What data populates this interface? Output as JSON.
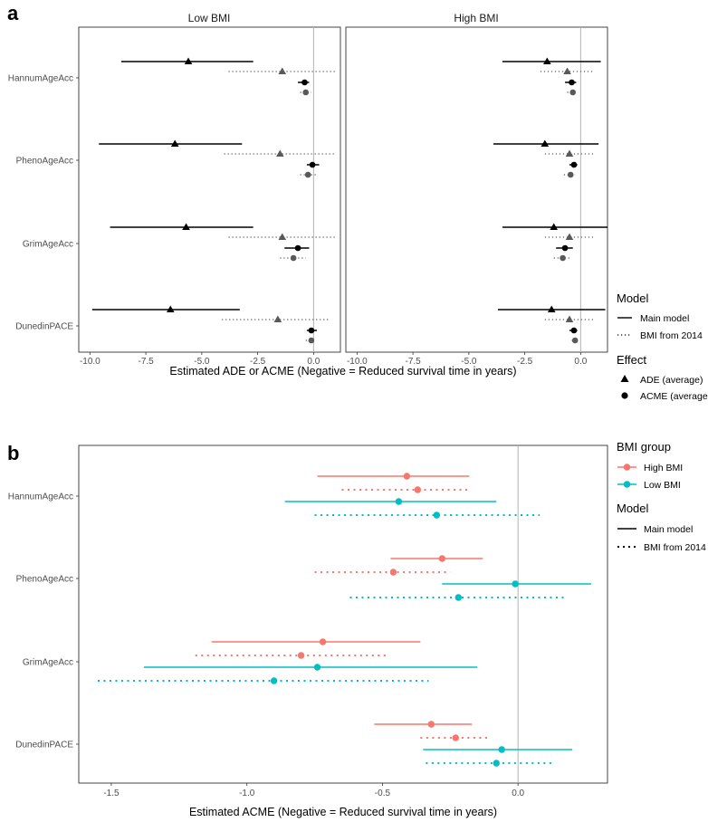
{
  "panel_a": {
    "label": "a",
    "facets": [
      "Low BMI",
      "High BMI"
    ],
    "xlabel": "Estimated ADE or ACME (Negative = Reduced survival time in years)",
    "legend": {
      "model_title": "Model",
      "model_items": [
        "Main model",
        "BMI from 2014"
      ],
      "effect_title": "Effect",
      "effect_items": [
        "ADE (average)",
        "ACME (average)"
      ]
    }
  },
  "panel_b": {
    "label": "b",
    "xlabel": "Estimated ACME (Negative = Reduced survival time in years)",
    "legend": {
      "group_title": "BMI group",
      "group_items": [
        "High BMI",
        "Low BMI"
      ],
      "group_colors": [
        "#F8766D",
        "#00BFC4"
      ],
      "model_title": "Model",
      "model_items": [
        "Main model",
        "BMI from 2014"
      ]
    }
  },
  "chart_data": [
    {
      "type": "scatter",
      "subtype": "forest",
      "title": "a",
      "facets": [
        "Low BMI",
        "High BMI"
      ],
      "categories": [
        "HannumAgeAcc",
        "PhenoAgeAcc",
        "GrimAgeAcc",
        "DunedinPACE"
      ],
      "xlim": [
        -10.5,
        1.2
      ],
      "xticks": [
        -10.0,
        -7.5,
        -5.0,
        -2.5,
        0.0
      ],
      "xtick_labels": [
        "-10.0",
        "-7.5",
        "-5.0",
        "-2.5",
        "0.0"
      ],
      "xlabel": "Estimated ADE or ACME (Negative = Reduced survival time in years)",
      "series": [
        {
          "facet": "Low BMI",
          "category": "HannumAgeAcc",
          "effect": "ADE",
          "model": "Main model",
          "est": -5.6,
          "lo": -8.6,
          "hi": -2.7
        },
        {
          "facet": "Low BMI",
          "category": "HannumAgeAcc",
          "effect": "ADE",
          "model": "BMI from 2014",
          "est": -1.4,
          "lo": -3.8,
          "hi": 1.0
        },
        {
          "facet": "Low BMI",
          "category": "HannumAgeAcc",
          "effect": "ACME",
          "model": "Main model",
          "est": -0.4,
          "lo": -0.7,
          "hi": -0.2
        },
        {
          "facet": "Low BMI",
          "category": "HannumAgeAcc",
          "effect": "ACME",
          "model": "BMI from 2014",
          "est": -0.35,
          "lo": -0.6,
          "hi": -0.1
        },
        {
          "facet": "Low BMI",
          "category": "PhenoAgeAcc",
          "effect": "ADE",
          "model": "Main model",
          "est": -6.2,
          "lo": -9.6,
          "hi": -3.2
        },
        {
          "facet": "Low BMI",
          "category": "PhenoAgeAcc",
          "effect": "ADE",
          "model": "BMI from 2014",
          "est": -1.5,
          "lo": -4.0,
          "hi": 1.0
        },
        {
          "facet": "Low BMI",
          "category": "PhenoAgeAcc",
          "effect": "ACME",
          "model": "Main model",
          "est": -0.05,
          "lo": -0.3,
          "hi": 0.25
        },
        {
          "facet": "Low BMI",
          "category": "PhenoAgeAcc",
          "effect": "ACME",
          "model": "BMI from 2014",
          "est": -0.25,
          "lo": -0.6,
          "hi": 0.15
        },
        {
          "facet": "Low BMI",
          "category": "GrimAgeAcc",
          "effect": "ADE",
          "model": "Main model",
          "est": -5.7,
          "lo": -9.1,
          "hi": -2.7
        },
        {
          "facet": "Low BMI",
          "category": "GrimAgeAcc",
          "effect": "ADE",
          "model": "BMI from 2014",
          "est": -1.4,
          "lo": -3.8,
          "hi": 1.0
        },
        {
          "facet": "Low BMI",
          "category": "GrimAgeAcc",
          "effect": "ACME",
          "model": "Main model",
          "est": -0.7,
          "lo": -1.3,
          "hi": -0.2
        },
        {
          "facet": "Low BMI",
          "category": "GrimAgeAcc",
          "effect": "ACME",
          "model": "BMI from 2014",
          "est": -0.9,
          "lo": -1.5,
          "hi": -0.35
        },
        {
          "facet": "Low BMI",
          "category": "DunedinPACE",
          "effect": "ADE",
          "model": "Main model",
          "est": -6.4,
          "lo": -9.9,
          "hi": -3.3
        },
        {
          "facet": "Low BMI",
          "category": "DunedinPACE",
          "effect": "ADE",
          "model": "BMI from 2014",
          "est": -1.6,
          "lo": -4.1,
          "hi": 0.7
        },
        {
          "facet": "Low BMI",
          "category": "DunedinPACE",
          "effect": "ACME",
          "model": "Main model",
          "est": -0.1,
          "lo": -0.3,
          "hi": 0.15
        },
        {
          "facet": "Low BMI",
          "category": "DunedinPACE",
          "effect": "ACME",
          "model": "BMI from 2014",
          "est": -0.1,
          "lo": -0.35,
          "hi": 0.1
        },
        {
          "facet": "High BMI",
          "category": "HannumAgeAcc",
          "effect": "ADE",
          "model": "Main model",
          "est": -1.5,
          "lo": -3.5,
          "hi": 0.9
        },
        {
          "facet": "High BMI",
          "category": "HannumAgeAcc",
          "effect": "ADE",
          "model": "BMI from 2014",
          "est": -0.6,
          "lo": -1.8,
          "hi": 0.6
        },
        {
          "facet": "High BMI",
          "category": "HannumAgeAcc",
          "effect": "ACME",
          "model": "Main model",
          "est": -0.4,
          "lo": -0.7,
          "hi": -0.2
        },
        {
          "facet": "High BMI",
          "category": "HannumAgeAcc",
          "effect": "ACME",
          "model": "BMI from 2014",
          "est": -0.35,
          "lo": -0.6,
          "hi": -0.15
        },
        {
          "facet": "High BMI",
          "category": "PhenoAgeAcc",
          "effect": "ADE",
          "model": "Main model",
          "est": -1.6,
          "lo": -3.9,
          "hi": 0.8
        },
        {
          "facet": "High BMI",
          "category": "PhenoAgeAcc",
          "effect": "ADE",
          "model": "BMI from 2014",
          "est": -0.5,
          "lo": -1.6,
          "hi": 0.6
        },
        {
          "facet": "High BMI",
          "category": "PhenoAgeAcc",
          "effect": "ACME",
          "model": "Main model",
          "est": -0.3,
          "lo": -0.5,
          "hi": -0.15
        },
        {
          "facet": "High BMI",
          "category": "PhenoAgeAcc",
          "effect": "ACME",
          "model": "BMI from 2014",
          "est": -0.45,
          "lo": -0.75,
          "hi": -0.25
        },
        {
          "facet": "High BMI",
          "category": "GrimAgeAcc",
          "effect": "ADE",
          "model": "Main model",
          "est": -1.2,
          "lo": -3.5,
          "hi": 1.2
        },
        {
          "facet": "High BMI",
          "category": "GrimAgeAcc",
          "effect": "ADE",
          "model": "BMI from 2014",
          "est": -0.5,
          "lo": -1.6,
          "hi": 0.6
        },
        {
          "facet": "High BMI",
          "category": "GrimAgeAcc",
          "effect": "ACME",
          "model": "Main model",
          "est": -0.7,
          "lo": -1.1,
          "hi": -0.35
        },
        {
          "facet": "High BMI",
          "category": "GrimAgeAcc",
          "effect": "ACME",
          "model": "BMI from 2014",
          "est": -0.8,
          "lo": -1.2,
          "hi": -0.5
        },
        {
          "facet": "High BMI",
          "category": "DunedinPACE",
          "effect": "ADE",
          "model": "Main model",
          "est": -1.3,
          "lo": -3.7,
          "hi": 1.1
        },
        {
          "facet": "High BMI",
          "category": "DunedinPACE",
          "effect": "ADE",
          "model": "BMI from 2014",
          "est": -0.5,
          "lo": -1.6,
          "hi": 0.6
        },
        {
          "facet": "High BMI",
          "category": "DunedinPACE",
          "effect": "ACME",
          "model": "Main model",
          "est": -0.3,
          "lo": -0.5,
          "hi": -0.15
        },
        {
          "facet": "High BMI",
          "category": "DunedinPACE",
          "effect": "ACME",
          "model": "BMI from 2014",
          "est": -0.25,
          "lo": -0.4,
          "hi": -0.1
        }
      ]
    },
    {
      "type": "scatter",
      "subtype": "forest",
      "title": "b",
      "categories": [
        "HannumAgeAcc",
        "PhenoAgeAcc",
        "GrimAgeAcc",
        "DunedinPACE"
      ],
      "xlim": [
        -1.62,
        0.33
      ],
      "xticks": [
        -1.5,
        -1.0,
        -0.5,
        0.0
      ],
      "xtick_labels": [
        "-1.5",
        "-1.0",
        "-0.5",
        "0.0"
      ],
      "xlabel": "Estimated ACME (Negative = Reduced survival time in years)",
      "series": [
        {
          "category": "HannumAgeAcc",
          "group": "High BMI",
          "model": "Main model",
          "est": -0.41,
          "lo": -0.74,
          "hi": -0.18
        },
        {
          "category": "HannumAgeAcc",
          "group": "High BMI",
          "model": "BMI from 2014",
          "est": -0.37,
          "lo": -0.65,
          "hi": -0.18
        },
        {
          "category": "HannumAgeAcc",
          "group": "Low BMI",
          "model": "Main model",
          "est": -0.44,
          "lo": -0.86,
          "hi": -0.08
        },
        {
          "category": "HannumAgeAcc",
          "group": "Low BMI",
          "model": "BMI from 2014",
          "est": -0.3,
          "lo": -0.75,
          "hi": 0.08
        },
        {
          "category": "PhenoAgeAcc",
          "group": "High BMI",
          "model": "Main model",
          "est": -0.28,
          "lo": -0.47,
          "hi": -0.13
        },
        {
          "category": "PhenoAgeAcc",
          "group": "High BMI",
          "model": "BMI from 2014",
          "est": -0.46,
          "lo": -0.75,
          "hi": -0.25
        },
        {
          "category": "PhenoAgeAcc",
          "group": "Low BMI",
          "model": "Main model",
          "est": -0.01,
          "lo": -0.28,
          "hi": 0.27
        },
        {
          "category": "PhenoAgeAcc",
          "group": "Low BMI",
          "model": "BMI from 2014",
          "est": -0.22,
          "lo": -0.62,
          "hi": 0.17
        },
        {
          "category": "GrimAgeAcc",
          "group": "High BMI",
          "model": "Main model",
          "est": -0.72,
          "lo": -1.13,
          "hi": -0.36
        },
        {
          "category": "GrimAgeAcc",
          "group": "High BMI",
          "model": "BMI from 2014",
          "est": -0.8,
          "lo": -1.19,
          "hi": -0.48
        },
        {
          "category": "GrimAgeAcc",
          "group": "Low BMI",
          "model": "Main model",
          "est": -0.74,
          "lo": -1.38,
          "hi": -0.15
        },
        {
          "category": "GrimAgeAcc",
          "group": "Low BMI",
          "model": "BMI from 2014",
          "est": -0.9,
          "lo": -1.55,
          "hi": -0.33
        },
        {
          "category": "DunedinPACE",
          "group": "High BMI",
          "model": "Main model",
          "est": -0.32,
          "lo": -0.53,
          "hi": -0.17
        },
        {
          "category": "DunedinPACE",
          "group": "High BMI",
          "model": "BMI from 2014",
          "est": -0.23,
          "lo": -0.36,
          "hi": -0.11
        },
        {
          "category": "DunedinPACE",
          "group": "Low BMI",
          "model": "Main model",
          "est": -0.06,
          "lo": -0.35,
          "hi": 0.2
        },
        {
          "category": "DunedinPACE",
          "group": "Low BMI",
          "model": "BMI from 2014",
          "est": -0.08,
          "lo": -0.34,
          "hi": 0.13
        }
      ]
    }
  ]
}
